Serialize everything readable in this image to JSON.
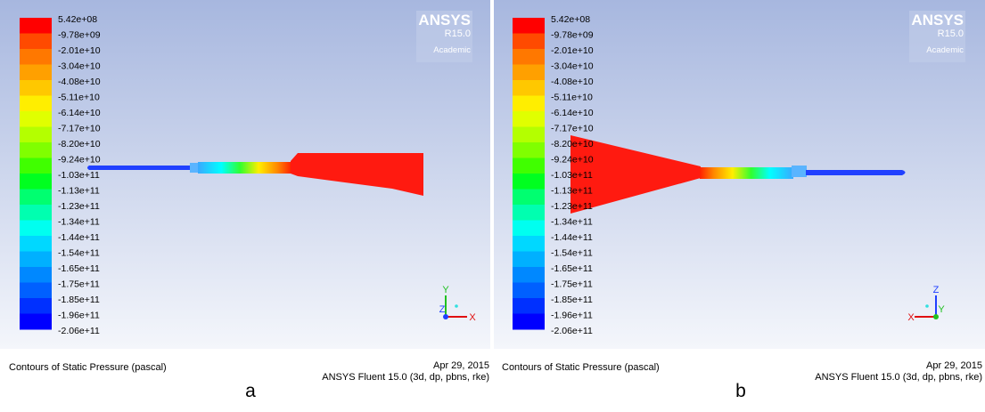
{
  "panels": [
    {
      "label": "a",
      "legend_labels": [
        "5.42e+08",
        "-9.78e+09",
        "-2.01e+10",
        "-3.04e+10",
        "-4.08e+10",
        "-5.11e+10",
        "-6.14e+10",
        "-7.17e+10",
        "-8.20e+10",
        "-9.24e+10",
        "-1.03e+11",
        "-1.13e+11",
        "-1.23e+11",
        "-1.34e+11",
        "-1.44e+11",
        "-1.54e+11",
        "-1.65e+11",
        "-1.75e+11",
        "-1.85e+11",
        "-1.96e+11",
        "-2.06e+11"
      ],
      "logo": {
        "name": "ANSYS",
        "version": "R15.0",
        "edition": "Academic"
      },
      "footer": {
        "title": "Contours of Static Pressure (pascal)",
        "date": "Apr 29, 2015",
        "software": "ANSYS Fluent 15.0 (3d, dp, pbns, rke)"
      },
      "axes": {
        "up": "Y",
        "out": "Z",
        "side": "X"
      }
    },
    {
      "label": "b",
      "legend_labels": [
        "5.42e+08",
        "-9.78e+09",
        "-2.01e+10",
        "-3.04e+10",
        "-4.08e+10",
        "-5.11e+10",
        "-6.14e+10",
        "-7.17e+10",
        "-8.20e+10",
        "-9.24e+10",
        "-1.03e+11",
        "-1.13e+11",
        "-1.23e+11",
        "-1.34e+11",
        "-1.44e+11",
        "-1.54e+11",
        "-1.65e+11",
        "-1.75e+11",
        "-1.85e+11",
        "-1.96e+11",
        "-2.06e+11"
      ],
      "logo": {
        "name": "ANSYS",
        "version": "R15.0",
        "edition": "Academic"
      },
      "footer": {
        "title": "Contours of Static Pressure (pascal)",
        "date": "Apr 29, 2015",
        "software": "ANSYS Fluent 15.0 (3d, dp, pbns, rke)"
      },
      "axes": {
        "up": "Z",
        "out": "Y",
        "side": "X"
      }
    }
  ]
}
